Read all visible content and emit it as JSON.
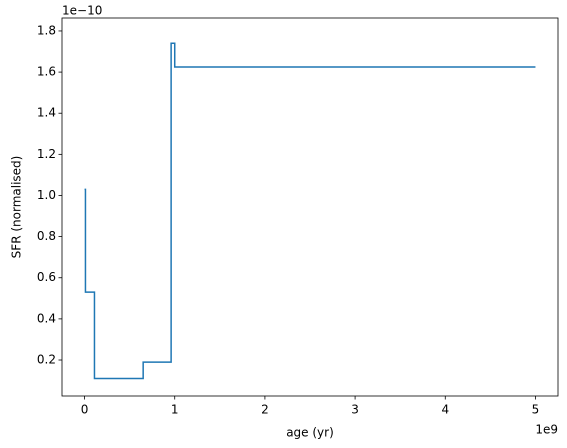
{
  "chart_data": {
    "type": "line",
    "x_label": "age (yr)",
    "y_label": "SFR (normalised)",
    "x_offset_text": "1e9",
    "y_offset_text": "1e−10",
    "x": [
      0.0,
      0.01,
      0.01,
      0.11,
      0.11,
      0.65,
      0.65,
      0.96,
      0.96,
      1.0,
      1.0,
      5.0
    ],
    "series": [
      {
        "color": "#1f77b4",
        "values": [
          1.03,
          1.03,
          0.53,
          0.53,
          0.11,
          0.11,
          0.19,
          0.19,
          1.74,
          1.74,
          1.625,
          1.625
        ]
      }
    ],
    "xlim": [
      -0.25,
      5.25
    ],
    "xticks": [
      0,
      1,
      2,
      3,
      4,
      5
    ],
    "ylim": [
      0.025,
      1.863
    ],
    "yticks": [
      0.2,
      0.4,
      0.6,
      0.8,
      {
        "value": 1,
        "label": "1.0"
      },
      1.2,
      1.4,
      1.6,
      1.8
    ],
    "grid": false
  }
}
